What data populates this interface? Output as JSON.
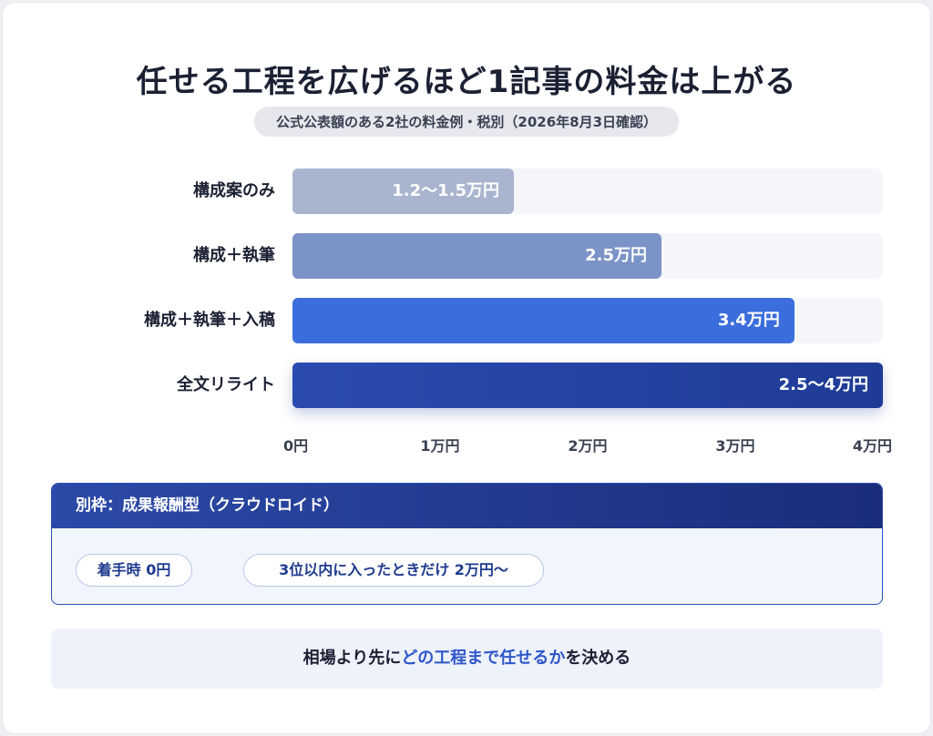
{
  "title": "任せる工程を広げるほど1記事の料金は上がる",
  "subtitle": "公式公表額のある2社の料金例・税別（2026年8月3日確認）",
  "chart_data": {
    "type": "bar",
    "orientation": "horizontal",
    "categories": [
      "構成案のみ",
      "構成＋執筆",
      "構成＋執筆＋入稿",
      "全文リライト"
    ],
    "values": [
      1.5,
      2.5,
      3.4,
      4.0
    ],
    "ranges": [
      [
        1.2,
        1.5
      ],
      [
        2.5,
        2.5
      ],
      [
        3.4,
        3.4
      ],
      [
        2.5,
        4.0
      ]
    ],
    "value_labels": [
      "1.2〜1.5万円",
      "2.5万円",
      "3.4万円",
      "2.5〜4万円"
    ],
    "bar_colors": [
      "#a9b5cf",
      "#7c93c8",
      "#3b6edc",
      "#1f3b96"
    ],
    "xlim": [
      0,
      4
    ],
    "xticks": [
      0,
      1,
      2,
      3,
      4
    ],
    "xtick_labels": [
      "0円",
      "1万円",
      "2万円",
      "3万円",
      "4万円"
    ],
    "xlabel": "",
    "ylabel": "",
    "grid": false
  },
  "panel": {
    "header": "別枠：成果報酬型（クラウドロイド）",
    "pill_left": "着手時 0円",
    "arrow": "→",
    "pill_right": "3位以内に入ったときだけ 2万円〜"
  },
  "footer": {
    "prefix": "相場より先に",
    "highlight": "どの工程まで任せるか",
    "suffix": "を決める"
  }
}
